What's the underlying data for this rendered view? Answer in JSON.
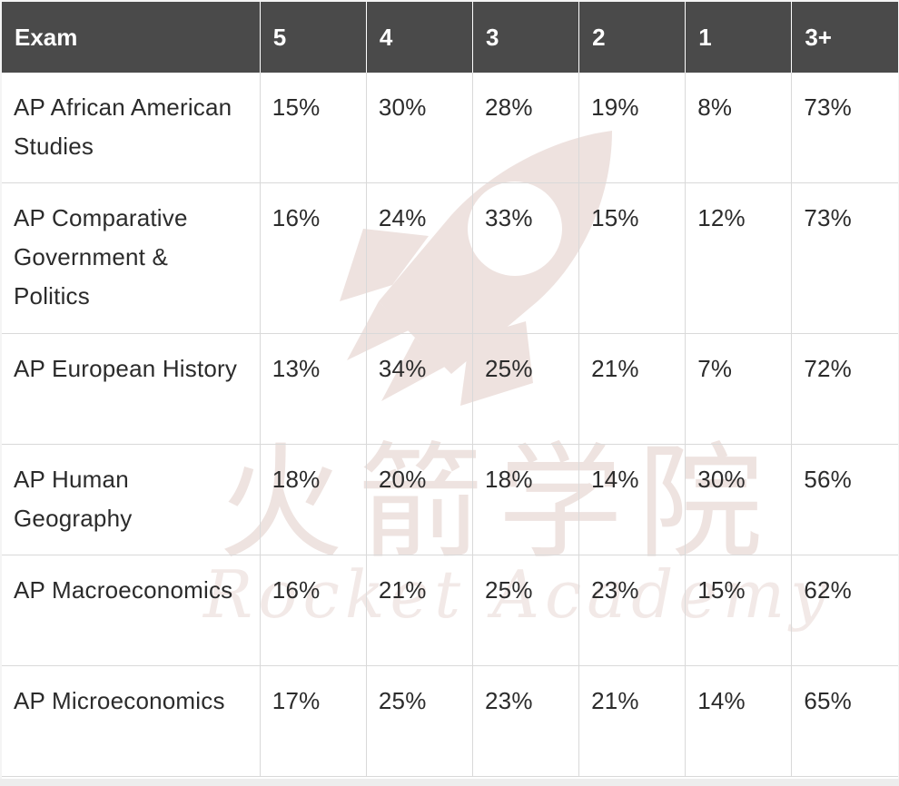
{
  "table": {
    "headers": [
      "Exam",
      "5",
      "4",
      "3",
      "2",
      "1",
      "3+"
    ],
    "rows": [
      [
        "AP African American Studies",
        "15%",
        "30%",
        "28%",
        "19%",
        "8%",
        "73%"
      ],
      [
        "AP Comparative Government & Politics",
        "16%",
        "24%",
        "33%",
        "15%",
        "12%",
        "73%"
      ],
      [
        "AP European History",
        "13%",
        "34%",
        "25%",
        "21%",
        "7%",
        "72%"
      ],
      [
        "AP Human Geography",
        "18%",
        "20%",
        "18%",
        "14%",
        "30%",
        "56%"
      ],
      [
        "AP Macroeconomics",
        "16%",
        "21%",
        "25%",
        "23%",
        "15%",
        "62%"
      ],
      [
        "AP Microeconomics",
        "17%",
        "25%",
        "23%",
        "21%",
        "14%",
        "65%"
      ]
    ]
  },
  "watermark": {
    "chinese_text": "火箭学院",
    "english_text": "Rocket Academy",
    "icon": "rocket-icon",
    "color": "#e8d8d4"
  },
  "colors": {
    "header_bg": "#4a4a4a",
    "header_text": "#ffffff",
    "cell_text": "#2b2b2b",
    "border": "#d9d9d9"
  }
}
